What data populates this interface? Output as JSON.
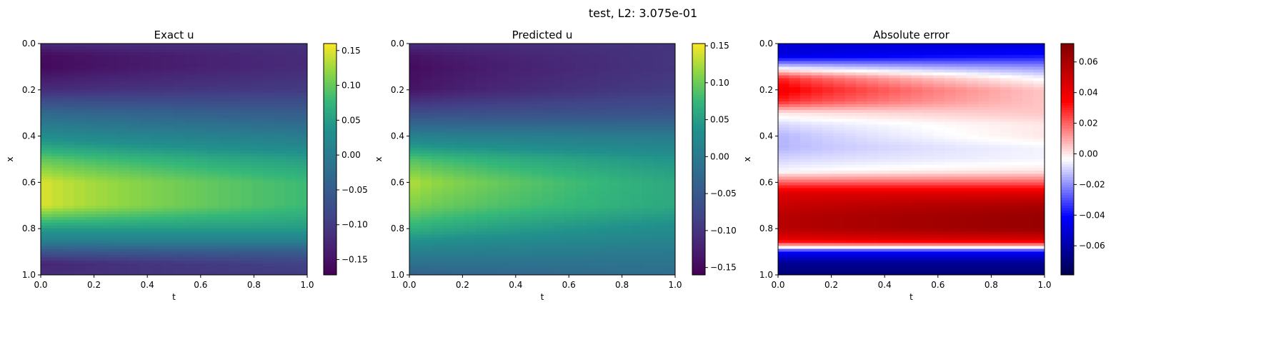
{
  "suptitle": "test, L2: 3.075e-01",
  "chart_data": [
    {
      "type": "heatmap",
      "title": "Exact u",
      "xlabel": "t",
      "ylabel": "x",
      "xlim": [
        0,
        1
      ],
      "ylim": [
        1,
        0
      ],
      "xticks": [
        "0.0",
        "0.2",
        "0.4",
        "0.6",
        "0.8",
        "1.0"
      ],
      "yticks": [
        "0.0",
        "0.2",
        "0.4",
        "0.6",
        "0.8",
        "1.0"
      ],
      "colormap": "viridis",
      "clim": [
        -0.172,
        0.16
      ],
      "colorbar_ticks": [
        0.15,
        0.1,
        0.05,
        0.0,
        -0.05,
        -0.1,
        -0.15
      ],
      "colorbar_labels": [
        "0.15",
        "0.10",
        "0.05",
        "0.00",
        "−0.05",
        "−0.10",
        "−0.15"
      ],
      "profile_x": [
        0.0,
        0.05,
        0.1,
        0.2,
        0.3,
        0.4,
        0.5,
        0.6,
        0.7,
        0.8,
        0.85,
        0.9,
        0.95,
        1.0
      ],
      "profile_start": [
        -0.12,
        -0.16,
        -0.165,
        -0.12,
        -0.03,
        0.03,
        0.1,
        0.15,
        0.15,
        0.05,
        0.01,
        -0.06,
        -0.13,
        -0.12
      ],
      "profile_end": [
        -0.11,
        -0.12,
        -0.12,
        -0.1,
        -0.05,
        0.0,
        0.05,
        0.08,
        0.08,
        0.05,
        0.01,
        -0.05,
        -0.09,
        -0.1
      ]
    },
    {
      "type": "heatmap",
      "title": "Predicted u",
      "xlabel": "t",
      "ylabel": "x",
      "xlim": [
        0,
        1
      ],
      "ylim": [
        1,
        0
      ],
      "xticks": [
        "0.0",
        "0.2",
        "0.4",
        "0.6",
        "0.8",
        "1.0"
      ],
      "yticks": [
        "0.0",
        "0.2",
        "0.4",
        "0.6",
        "0.8",
        "1.0"
      ],
      "colormap": "viridis",
      "clim": [
        -0.16,
        0.153
      ],
      "colorbar_ticks": [
        0.15,
        0.1,
        0.05,
        0.0,
        -0.05,
        -0.1,
        -0.15
      ],
      "colorbar_labels": [
        "0.15",
        "0.10",
        "0.05",
        "0.00",
        "−0.05",
        "−0.10",
        "−0.15"
      ],
      "profile_x": [
        0.0,
        0.05,
        0.1,
        0.2,
        0.3,
        0.4,
        0.5,
        0.6,
        0.7,
        0.8,
        0.9,
        1.0
      ],
      "profile_start": [
        -0.11,
        -0.14,
        -0.15,
        -0.14,
        -0.07,
        0.01,
        0.09,
        0.13,
        0.11,
        0.07,
        0.01,
        -0.04
      ],
      "profile_end": [
        -0.1,
        -0.1,
        -0.1,
        -0.09,
        -0.06,
        0.0,
        0.04,
        0.06,
        0.06,
        0.03,
        0.0,
        -0.02
      ]
    },
    {
      "type": "heatmap",
      "title": "Absolute error",
      "xlabel": "t",
      "ylabel": "x",
      "xlim": [
        0,
        1
      ],
      "ylim": [
        1,
        0
      ],
      "xticks": [
        "0.0",
        "0.2",
        "0.4",
        "0.6",
        "0.8",
        "1.0"
      ],
      "yticks": [
        "0.0",
        "0.2",
        "0.4",
        "0.6",
        "0.8",
        "1.0"
      ],
      "colormap": "seismic",
      "clim": [
        -0.079,
        0.072
      ],
      "colorbar_ticks": [
        0.06,
        0.04,
        0.02,
        0.0,
        -0.02,
        -0.04,
        -0.06
      ],
      "colorbar_labels": [
        "0.06",
        "0.04",
        "0.02",
        "0.00",
        "−0.02",
        "−0.04",
        "−0.06"
      ],
      "profile_x": [
        0.0,
        0.05,
        0.1,
        0.15,
        0.2,
        0.25,
        0.3,
        0.35,
        0.4,
        0.45,
        0.5,
        0.55,
        0.6,
        0.65,
        0.7,
        0.75,
        0.8,
        0.85,
        0.88,
        0.9,
        0.95,
        1.0
      ],
      "profile_start": [
        -0.05,
        -0.05,
        -0.01,
        0.03,
        0.04,
        0.03,
        0.0,
        -0.01,
        -0.015,
        -0.015,
        -0.01,
        -0.005,
        0.02,
        0.045,
        0.05,
        0.055,
        0.055,
        0.04,
        0.0,
        -0.04,
        -0.065,
        -0.07
      ],
      "profile_end": [
        -0.05,
        -0.04,
        -0.02,
        -0.005,
        0.005,
        0.005,
        0.005,
        0.0,
        0.0,
        -0.005,
        -0.005,
        0.0,
        0.02,
        0.045,
        0.06,
        0.065,
        0.065,
        0.045,
        0.0,
        -0.04,
        -0.065,
        -0.07
      ]
    }
  ]
}
